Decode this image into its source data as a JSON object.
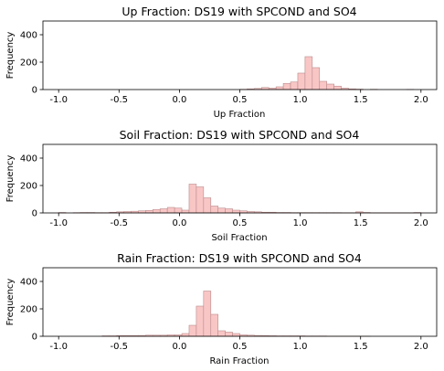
{
  "colors": {
    "bar_fill": "#f9c6c6",
    "bar_edge": "#b98b8b"
  },
  "chart_data": [
    {
      "type": "bar",
      "title": "Up Fraction: DS19 with SPCOND and SO4",
      "xlabel": "Up Fraction",
      "ylabel": "Frequency",
      "xlim": [
        -1.13,
        2.13
      ],
      "ylim": [
        0,
        500
      ],
      "xticks": [
        "-1.0",
        "-0.5",
        "0.0",
        "0.5",
        "1.0",
        "1.5",
        "2.0"
      ],
      "xtick_values": [
        -1.0,
        -0.5,
        0.0,
        0.5,
        1.0,
        1.5,
        2.0
      ],
      "yticks": [
        "0",
        "200",
        "400"
      ],
      "ytick_values": [
        0,
        200,
        400
      ],
      "bin_start": -1.0,
      "bin_width": 0.06,
      "values": [
        0,
        0,
        0,
        0,
        0,
        0,
        0,
        0,
        0,
        0,
        0,
        0,
        0,
        0,
        0,
        0,
        0,
        0,
        0,
        0,
        0,
        0,
        0,
        0,
        0,
        2,
        5,
        8,
        15,
        10,
        20,
        45,
        55,
        120,
        240,
        160,
        60,
        40,
        25,
        10,
        5,
        3,
        0,
        2,
        0,
        0,
        0,
        0,
        1,
        0
      ]
    },
    {
      "type": "bar",
      "title": "Soil Fraction: DS19 with SPCOND and SO4",
      "xlabel": "Soil Fraction",
      "ylabel": "Frequency",
      "xlim": [
        -1.13,
        2.13
      ],
      "ylim": [
        0,
        500
      ],
      "xticks": [
        "-1.0",
        "-0.5",
        "0.0",
        "0.5",
        "1.0",
        "1.5",
        "2.0"
      ],
      "xtick_values": [
        -1.0,
        -0.5,
        0.0,
        0.5,
        1.0,
        1.5,
        2.0
      ],
      "yticks": [
        "0",
        "200",
        "400"
      ],
      "ytick_values": [
        0,
        200,
        400
      ],
      "bin_start": -1.0,
      "bin_width": 0.06,
      "values": [
        3,
        0,
        2,
        3,
        3,
        2,
        2,
        5,
        8,
        10,
        12,
        15,
        18,
        25,
        30,
        40,
        35,
        20,
        210,
        190,
        110,
        50,
        35,
        30,
        20,
        15,
        10,
        8,
        5,
        5,
        3,
        3,
        2,
        2,
        2,
        2,
        2,
        2,
        2,
        1,
        1,
        8,
        3,
        1,
        1,
        1,
        1,
        1,
        1,
        3
      ]
    },
    {
      "type": "bar",
      "title": "Rain Fraction: DS19 with SPCOND and SO4",
      "xlabel": "Rain Fraction",
      "ylabel": "Frequency",
      "xlim": [
        -1.13,
        2.13
      ],
      "ylim": [
        0,
        500
      ],
      "xticks": [
        "-1.0",
        "-0.5",
        "0.0",
        "0.5",
        "1.0",
        "1.5",
        "2.0"
      ],
      "xtick_values": [
        -1.0,
        -0.5,
        0.0,
        0.5,
        1.0,
        1.5,
        2.0
      ],
      "yticks": [
        "0",
        "200",
        "400"
      ],
      "ytick_values": [
        0,
        200,
        400
      ],
      "bin_start": -1.0,
      "bin_width": 0.06,
      "values": [
        0,
        0,
        0,
        0,
        0,
        0,
        3,
        3,
        5,
        5,
        5,
        6,
        8,
        8,
        8,
        10,
        10,
        20,
        80,
        220,
        330,
        160,
        40,
        30,
        20,
        10,
        8,
        6,
        5,
        4,
        3,
        3,
        3,
        3,
        2,
        2,
        2,
        1,
        1,
        1,
        1,
        1,
        1,
        0,
        0,
        0,
        0,
        0,
        0,
        0
      ]
    }
  ]
}
